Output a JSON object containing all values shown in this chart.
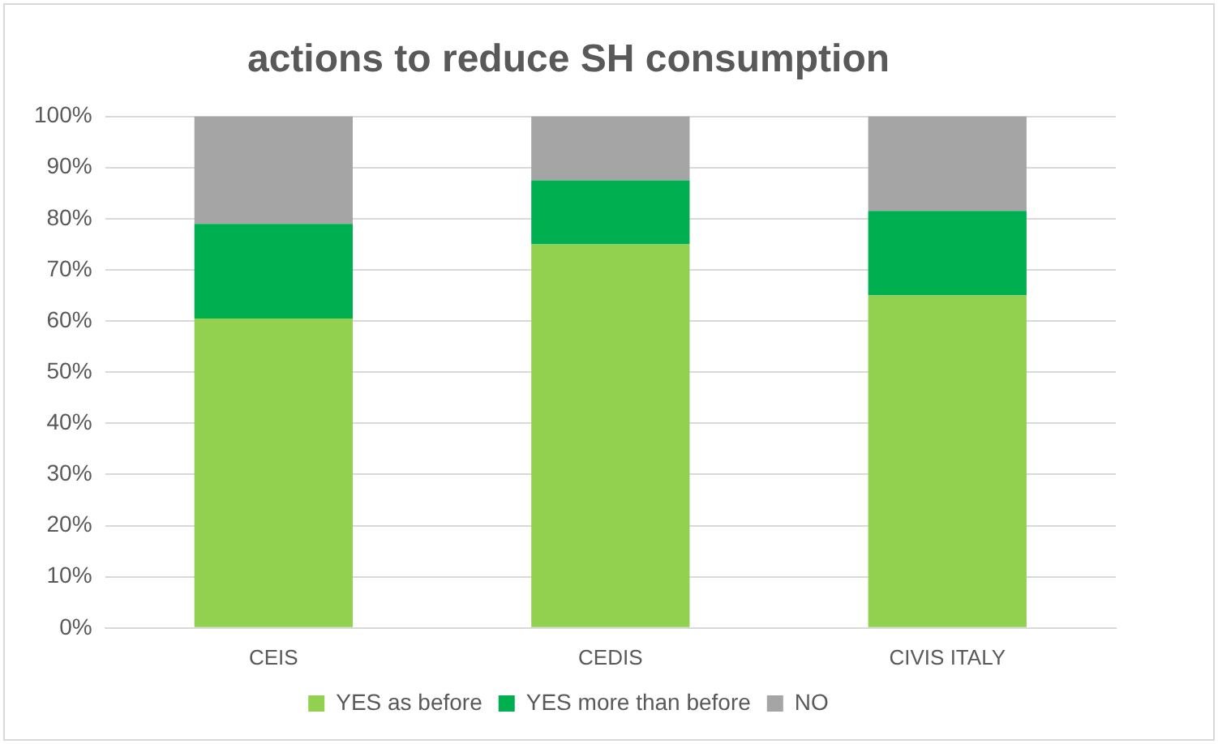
{
  "chart_data": {
    "type": "bar",
    "stacked": true,
    "title": "actions to reduce SH consumption",
    "categories": [
      "CEIS",
      "CEDIS",
      "CIVIS ITALY"
    ],
    "series": [
      {
        "name": "YES as before",
        "color": "#92d050",
        "values": [
          60.5,
          75,
          65
        ]
      },
      {
        "name": "YES more than before",
        "color": "#00b050",
        "values": [
          18.5,
          12.5,
          16.5
        ]
      },
      {
        "name": "NO",
        "color": "#a5a5a5",
        "values": [
          21,
          12.5,
          18.5
        ]
      }
    ],
    "ylim": [
      0,
      100
    ],
    "yticks": [
      {
        "value": 0,
        "label": "0%"
      },
      {
        "value": 10,
        "label": "10%"
      },
      {
        "value": 20,
        "label": "20%"
      },
      {
        "value": 30,
        "label": "30%"
      },
      {
        "value": 40,
        "label": "40%"
      },
      {
        "value": 50,
        "label": "50%"
      },
      {
        "value": 60,
        "label": "60%"
      },
      {
        "value": 70,
        "label": "70%"
      },
      {
        "value": 80,
        "label": "80%"
      },
      {
        "value": 90,
        "label": "90%"
      },
      {
        "value": 100,
        "label": "100%"
      }
    ],
    "grid": "y",
    "legend": "bottom"
  }
}
